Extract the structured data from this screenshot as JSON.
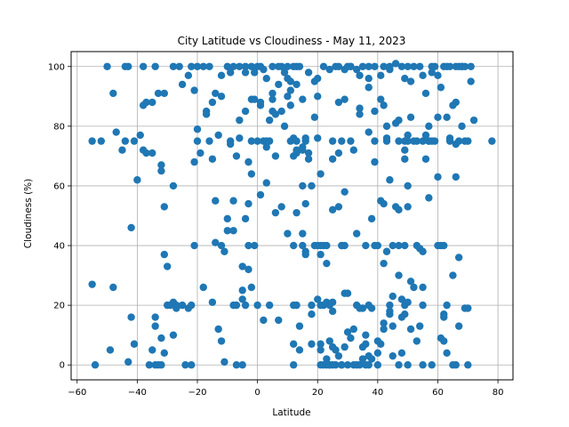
{
  "chart_data": {
    "type": "scatter",
    "title": "City Latitude vs Cloudiness - May 11, 2023",
    "xlabel": "Latitude",
    "ylabel": "Cloudiness (%)",
    "xlim": [
      -62,
      85
    ],
    "ylim": [
      -5,
      105
    ],
    "xticks": [
      -60,
      -40,
      -20,
      0,
      20,
      40,
      60,
      80
    ],
    "yticks": [
      0,
      20,
      40,
      60,
      80,
      100
    ],
    "xtick_labels": [
      "−60",
      "−40",
      "−20",
      "0",
      "20",
      "40",
      "60",
      "80"
    ],
    "ytick_labels": [
      "0",
      "20",
      "40",
      "60",
      "80",
      "100"
    ],
    "grid": true,
    "marker_color": "#1f77b4",
    "points": [
      [
        -55,
        75
      ],
      [
        -55,
        27
      ],
      [
        -54,
        0
      ],
      [
        -52,
        75
      ],
      [
        -50,
        100
      ],
      [
        -49,
        5
      ],
      [
        -48,
        91
      ],
      [
        -48,
        26
      ],
      [
        -47,
        78
      ],
      [
        -45,
        72
      ],
      [
        -44,
        75
      ],
      [
        -44,
        100
      ],
      [
        -43,
        1
      ],
      [
        -43,
        100
      ],
      [
        -42,
        46
      ],
      [
        -42,
        16
      ],
      [
        -41,
        7
      ],
      [
        -41,
        75
      ],
      [
        -40,
        62
      ],
      [
        -39,
        77
      ],
      [
        -38,
        100
      ],
      [
        -38,
        87
      ],
      [
        -38,
        72
      ],
      [
        -37,
        88
      ],
      [
        -37,
        71
      ],
      [
        -36,
        0
      ],
      [
        -35,
        71
      ],
      [
        -35,
        5
      ],
      [
        -35,
        88
      ],
      [
        -34,
        100
      ],
      [
        -34,
        16
      ],
      [
        -34,
        13
      ],
      [
        -34,
        0
      ],
      [
        -33,
        91
      ],
      [
        -33,
        0
      ],
      [
        -32,
        65
      ],
      [
        -32,
        67
      ],
      [
        -32,
        9
      ],
      [
        -32,
        0
      ],
      [
        -31,
        91
      ],
      [
        -31,
        53
      ],
      [
        -31,
        37
      ],
      [
        -31,
        4
      ],
      [
        -30,
        20
      ],
      [
        -30,
        33
      ],
      [
        -29,
        20
      ],
      [
        -28,
        60
      ],
      [
        -28,
        10
      ],
      [
        -28,
        21
      ],
      [
        -28,
        100
      ],
      [
        -27,
        19
      ],
      [
        -27,
        20
      ],
      [
        -26,
        100
      ],
      [
        -25,
        94
      ],
      [
        -25,
        20
      ],
      [
        -24,
        0
      ],
      [
        -23,
        97
      ],
      [
        -23,
        19
      ],
      [
        -22,
        100
      ],
      [
        -22,
        0
      ],
      [
        -22,
        20
      ],
      [
        -21,
        92
      ],
      [
        -21,
        68
      ],
      [
        -21,
        40
      ],
      [
        -20,
        75
      ],
      [
        -20,
        79
      ],
      [
        -20,
        100
      ],
      [
        -19,
        71
      ],
      [
        -18,
        26
      ],
      [
        -18,
        100
      ],
      [
        -17,
        85
      ],
      [
        -17,
        84
      ],
      [
        -16,
        100
      ],
      [
        -16,
        75
      ],
      [
        -15,
        88
      ],
      [
        -15,
        69
      ],
      [
        -15,
        21
      ],
      [
        -14,
        91
      ],
      [
        -14,
        55
      ],
      [
        -14,
        41
      ],
      [
        -13,
        77
      ],
      [
        -13,
        12
      ],
      [
        -12,
        97
      ],
      [
        -12,
        90
      ],
      [
        -12,
        8
      ],
      [
        -12,
        40
      ],
      [
        -11,
        1
      ],
      [
        -11,
        38
      ],
      [
        -10,
        49
      ],
      [
        -10,
        45
      ],
      [
        -10,
        100
      ],
      [
        -9,
        98
      ],
      [
        -9,
        75
      ],
      [
        -9,
        74
      ],
      [
        -8,
        100
      ],
      [
        -8,
        55
      ],
      [
        -8,
        45
      ],
      [
        -8,
        20
      ],
      [
        -7,
        70
      ],
      [
        -7,
        20
      ],
      [
        -7,
        0
      ],
      [
        -6,
        82
      ],
      [
        -6,
        100
      ],
      [
        -6,
        76
      ],
      [
        -5,
        33
      ],
      [
        -5,
        22
      ],
      [
        -5,
        25
      ],
      [
        -5,
        0
      ],
      [
        -4,
        98
      ],
      [
        -4,
        85
      ],
      [
        -4,
        49
      ],
      [
        -4,
        20
      ],
      [
        -4,
        100
      ],
      [
        -3,
        68
      ],
      [
        -3,
        54
      ],
      [
        -3,
        40
      ],
      [
        -3,
        32
      ],
      [
        -2,
        100
      ],
      [
        -2,
        89
      ],
      [
        -2,
        75
      ],
      [
        -2,
        64
      ],
      [
        -2,
        26
      ],
      [
        -1,
        40
      ],
      [
        -1,
        98
      ],
      [
        -1,
        89
      ],
      [
        0,
        100
      ],
      [
        0,
        75
      ],
      [
        0,
        20
      ],
      [
        1,
        57
      ],
      [
        1,
        87
      ],
      [
        1,
        88
      ],
      [
        1,
        100
      ],
      [
        2,
        75
      ],
      [
        2,
        99
      ],
      [
        2,
        15
      ],
      [
        3,
        61
      ],
      [
        3,
        96
      ],
      [
        3,
        73
      ],
      [
        3,
        75
      ],
      [
        4,
        75
      ],
      [
        4,
        82
      ],
      [
        4,
        20
      ],
      [
        5,
        100
      ],
      [
        5,
        89
      ],
      [
        5,
        85
      ],
      [
        5,
        91
      ],
      [
        6,
        51
      ],
      [
        6,
        70
      ],
      [
        6,
        84
      ],
      [
        7,
        100
      ],
      [
        7,
        15
      ],
      [
        7,
        94
      ],
      [
        8,
        85
      ],
      [
        8,
        53
      ],
      [
        8,
        100
      ],
      [
        9,
        80
      ],
      [
        9,
        98
      ],
      [
        10,
        100
      ],
      [
        10,
        44
      ],
      [
        10,
        90
      ],
      [
        10,
        96
      ],
      [
        11,
        92
      ],
      [
        11,
        95
      ],
      [
        11,
        75
      ],
      [
        11,
        87
      ],
      [
        12,
        100
      ],
      [
        12,
        76
      ],
      [
        12,
        70
      ],
      [
        12,
        40
      ],
      [
        12,
        20
      ],
      [
        12,
        0
      ],
      [
        12,
        7
      ],
      [
        13,
        100
      ],
      [
        13,
        75
      ],
      [
        13,
        71
      ],
      [
        13,
        72
      ],
      [
        13,
        94
      ],
      [
        13,
        51
      ],
      [
        13,
        20
      ],
      [
        14,
        13
      ],
      [
        14,
        5
      ],
      [
        14,
        100
      ],
      [
        15,
        89
      ],
      [
        15,
        73
      ],
      [
        15,
        72
      ],
      [
        15,
        60
      ],
      [
        15,
        44
      ],
      [
        15,
        40
      ],
      [
        16,
        38
      ],
      [
        16,
        37
      ],
      [
        16,
        75
      ],
      [
        16,
        76
      ],
      [
        16,
        54
      ],
      [
        17,
        98
      ],
      [
        17,
        71
      ],
      [
        17,
        69
      ],
      [
        18,
        20
      ],
      [
        18,
        17
      ],
      [
        18,
        7
      ],
      [
        18,
        60
      ],
      [
        19,
        95
      ],
      [
        19,
        83
      ],
      [
        19,
        40
      ],
      [
        20,
        22
      ],
      [
        20,
        40
      ],
      [
        20,
        90
      ],
      [
        20,
        76
      ],
      [
        20,
        96
      ],
      [
        21,
        20
      ],
      [
        21,
        7
      ],
      [
        21,
        0
      ],
      [
        21,
        5
      ],
      [
        21,
        64
      ],
      [
        21,
        37
      ],
      [
        21,
        40
      ],
      [
        22,
        100
      ],
      [
        22,
        20
      ],
      [
        22,
        40
      ],
      [
        22,
        0
      ],
      [
        23,
        21
      ],
      [
        23,
        2
      ],
      [
        23,
        0
      ],
      [
        23,
        40
      ],
      [
        23,
        34
      ],
      [
        24,
        99
      ],
      [
        24,
        20
      ],
      [
        24,
        0
      ],
      [
        24,
        8
      ],
      [
        24,
        0
      ],
      [
        25,
        52
      ],
      [
        25,
        75
      ],
      [
        25,
        69
      ],
      [
        25,
        6
      ],
      [
        25,
        0
      ],
      [
        25,
        21
      ],
      [
        25,
        18
      ],
      [
        26,
        100
      ],
      [
        26,
        5
      ],
      [
        26,
        0
      ],
      [
        27,
        88
      ],
      [
        27,
        71
      ],
      [
        27,
        53
      ],
      [
        27,
        3
      ],
      [
        27,
        100
      ],
      [
        28,
        40
      ],
      [
        28,
        40
      ],
      [
        28,
        0
      ],
      [
        28,
        75
      ],
      [
        28,
        0
      ],
      [
        29,
        99
      ],
      [
        29,
        89
      ],
      [
        29,
        58
      ],
      [
        29,
        6
      ],
      [
        29,
        24
      ],
      [
        29,
        40
      ],
      [
        30,
        100
      ],
      [
        30,
        24
      ],
      [
        30,
        11
      ],
      [
        30,
        0
      ],
      [
        31,
        100
      ],
      [
        31,
        75
      ],
      [
        31,
        100
      ],
      [
        31,
        9
      ],
      [
        32,
        0
      ],
      [
        32,
        72
      ],
      [
        32,
        12
      ],
      [
        33,
        99
      ],
      [
        33,
        44
      ],
      [
        33,
        20
      ],
      [
        33,
        0
      ],
      [
        34,
        97
      ],
      [
        34,
        86
      ],
      [
        34,
        84
      ],
      [
        34,
        19
      ],
      [
        34,
        0
      ],
      [
        35,
        100
      ],
      [
        35,
        19
      ],
      [
        35,
        6
      ],
      [
        35,
        2
      ],
      [
        36,
        0
      ],
      [
        36,
        10
      ],
      [
        36,
        7
      ],
      [
        36,
        40
      ],
      [
        37,
        78
      ],
      [
        37,
        0
      ],
      [
        37,
        3
      ],
      [
        37,
        20
      ],
      [
        37,
        100
      ],
      [
        37,
        96
      ],
      [
        37,
        93
      ],
      [
        38,
        2
      ],
      [
        38,
        49
      ],
      [
        38,
        19
      ],
      [
        39,
        100
      ],
      [
        39,
        85
      ],
      [
        39,
        75
      ],
      [
        39,
        68
      ],
      [
        39,
        40
      ],
      [
        40,
        8
      ],
      [
        40,
        4
      ],
      [
        40,
        40
      ],
      [
        40,
        0
      ],
      [
        41,
        97
      ],
      [
        41,
        89
      ],
      [
        41,
        55
      ],
      [
        41,
        7
      ],
      [
        42,
        87
      ],
      [
        42,
        54
      ],
      [
        42,
        100
      ],
      [
        42,
        12
      ],
      [
        42,
        14
      ],
      [
        42,
        34
      ],
      [
        43,
        80
      ],
      [
        43,
        75
      ],
      [
        43,
        76
      ],
      [
        43,
        38
      ],
      [
        44,
        62
      ],
      [
        44,
        99
      ],
      [
        44,
        100
      ],
      [
        44,
        17
      ],
      [
        44,
        18
      ],
      [
        44,
        20
      ],
      [
        45,
        23
      ],
      [
        45,
        13
      ],
      [
        45,
        40
      ],
      [
        45,
        3
      ],
      [
        46,
        53
      ],
      [
        46,
        101
      ],
      [
        46,
        81
      ],
      [
        47,
        40
      ],
      [
        47,
        30
      ],
      [
        47,
        52
      ],
      [
        47,
        0
      ],
      [
        47,
        82
      ],
      [
        47,
        75
      ],
      [
        48,
        100
      ],
      [
        48,
        22
      ],
      [
        48,
        16
      ],
      [
        48,
        4
      ],
      [
        49,
        96
      ],
      [
        49,
        75
      ],
      [
        49,
        72
      ],
      [
        49,
        69
      ],
      [
        49,
        40
      ],
      [
        49,
        20
      ],
      [
        49,
        17
      ],
      [
        50,
        100
      ],
      [
        50,
        77
      ],
      [
        50,
        75
      ],
      [
        50,
        60
      ],
      [
        50,
        53
      ],
      [
        50,
        21
      ],
      [
        50,
        0
      ],
      [
        51,
        83
      ],
      [
        51,
        95
      ],
      [
        51,
        28
      ],
      [
        51,
        12
      ],
      [
        52,
        100
      ],
      [
        52,
        75
      ],
      [
        52,
        26
      ],
      [
        53,
        75
      ],
      [
        53,
        40
      ],
      [
        53,
        8
      ],
      [
        54,
        100
      ],
      [
        54,
        39
      ],
      [
        54,
        13
      ],
      [
        55,
        97
      ],
      [
        55,
        75
      ],
      [
        55,
        38
      ],
      [
        55,
        20
      ],
      [
        55,
        0
      ],
      [
        55,
        26
      ],
      [
        56,
        91
      ],
      [
        56,
        77
      ],
      [
        56,
        69
      ],
      [
        57,
        75
      ],
      [
        57,
        80
      ],
      [
        57,
        75
      ],
      [
        57,
        56
      ],
      [
        58,
        100
      ],
      [
        58,
        98
      ],
      [
        58,
        75
      ],
      [
        58,
        0
      ],
      [
        59,
        100
      ],
      [
        59,
        75
      ],
      [
        60,
        97
      ],
      [
        60,
        63
      ],
      [
        60,
        83
      ],
      [
        60,
        40
      ],
      [
        61,
        93
      ],
      [
        61,
        40
      ],
      [
        61,
        9
      ],
      [
        62,
        100
      ],
      [
        62,
        17
      ],
      [
        62,
        16
      ],
      [
        62,
        40
      ],
      [
        62,
        8
      ],
      [
        63,
        100
      ],
      [
        63,
        83
      ],
      [
        63,
        20
      ],
      [
        63,
        4
      ],
      [
        64,
        76
      ],
      [
        64,
        75
      ],
      [
        64,
        100
      ],
      [
        65,
        87
      ],
      [
        65,
        0
      ],
      [
        65,
        30
      ],
      [
        66,
        100
      ],
      [
        66,
        74
      ],
      [
        66,
        63
      ],
      [
        66,
        88
      ],
      [
        66,
        0
      ],
      [
        67,
        75
      ],
      [
        67,
        100
      ],
      [
        67,
        13
      ],
      [
        67,
        36
      ],
      [
        68,
        80
      ],
      [
        68,
        100
      ],
      [
        68,
        100
      ],
      [
        69,
        75
      ],
      [
        69,
        100
      ],
      [
        69,
        19
      ],
      [
        70,
        75
      ],
      [
        70,
        0
      ],
      [
        70,
        19
      ],
      [
        71,
        95
      ],
      [
        71,
        100
      ],
      [
        72,
        82
      ],
      [
        78,
        75
      ]
    ]
  }
}
